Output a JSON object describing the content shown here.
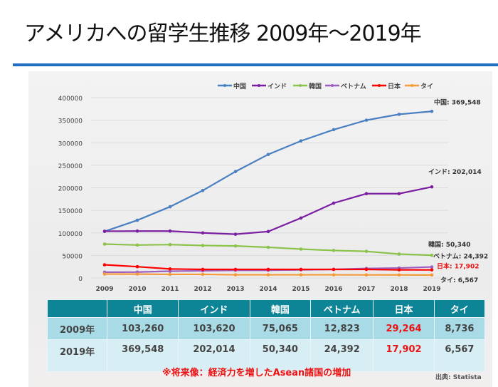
{
  "title": "アメリカへの留学生推移 2009年～2019年",
  "chart_data": {
    "type": "line",
    "x": [
      2009,
      2010,
      2011,
      2012,
      2013,
      2014,
      2015,
      2016,
      2017,
      2018,
      2019
    ],
    "ylim": [
      0,
      400000
    ],
    "yticks": [
      0,
      50000,
      100000,
      150000,
      200000,
      250000,
      300000,
      350000,
      400000
    ],
    "grid": true,
    "legend": "top",
    "series": [
      {
        "name": "中国",
        "color": "#4a7fc1",
        "values": [
          103260,
          128000,
          158000,
          194000,
          236000,
          274000,
          304000,
          329000,
          350000,
          363000,
          369548
        ],
        "end_label": "中国: 369,548",
        "label_color": "#333"
      },
      {
        "name": "インド",
        "color": "#7a1fa2",
        "values": [
          103620,
          104000,
          104000,
          100000,
          97000,
          103000,
          133000,
          166000,
          187000,
          187000,
          202014
        ],
        "end_label": "インド: 202,014",
        "label_color": "#333"
      },
      {
        "name": "韓国",
        "color": "#8bc34a",
        "values": [
          75065,
          73000,
          74000,
          72000,
          71000,
          68000,
          64000,
          61000,
          59000,
          53000,
          50340
        ],
        "end_label": "韓国: 50,340",
        "label_color": "#333"
      },
      {
        "name": "ベトナム",
        "color": "#9c5fc0",
        "values": [
          12823,
          13000,
          15000,
          16000,
          17000,
          17000,
          18000,
          19000,
          21000,
          22000,
          24392
        ],
        "end_label": "ベトナム: 24,392",
        "label_color": "#333"
      },
      {
        "name": "日本",
        "color": "#ff0000",
        "values": [
          29264,
          25000,
          20000,
          19000,
          19000,
          19000,
          19000,
          19000,
          19000,
          18000,
          17902
        ],
        "end_label": "日本: 17,902",
        "label_color": "#ee1111"
      },
      {
        "name": "タイ",
        "color": "#f59a3a",
        "values": [
          8736,
          8500,
          8000,
          8000,
          7000,
          7000,
          7000,
          7000,
          6800,
          6700,
          6567
        ],
        "end_label": "タイ: 6,567",
        "label_color": "#333"
      }
    ]
  },
  "table": {
    "headers": [
      "",
      "中国",
      "インド",
      "韓国",
      "ベトナム",
      "日本",
      "タイ"
    ],
    "rows": [
      [
        "2009年",
        "103,260",
        "103,620",
        "75,065",
        "12,823",
        "29,264",
        "8,736"
      ],
      [
        "2019年",
        "369,548",
        "202,014",
        "50,340",
        "24,392",
        "17,902",
        "6,567"
      ]
    ]
  },
  "note": "※将来像：経済力を増したAsean諸国の増加",
  "source": "出典: Statista"
}
